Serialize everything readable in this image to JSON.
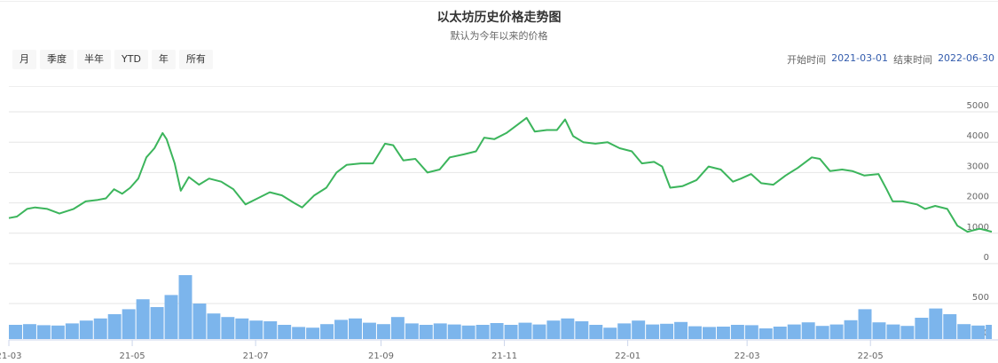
{
  "title": "以太坊历史价格走势图",
  "subtitle": "默认为今年以来的价格",
  "range_buttons": [
    "月",
    "季度",
    "半年",
    "YTD",
    "年",
    "所有"
  ],
  "date_range": {
    "start_label": "开始时间",
    "start": "2021-03-01",
    "end_label": "结束时间",
    "end": "2022-06-30"
  },
  "colors": {
    "price_line": "#3cb55c",
    "volume_bar": "#7cb5ec",
    "grid": "#e6e6e6",
    "date_value": "#335cad"
  },
  "chart_data": [
    {
      "type": "line",
      "name": "price",
      "xlim": [
        "2021-03-01",
        "2022-06-30"
      ],
      "ylim": [
        0,
        5000
      ],
      "yticks": [
        0,
        1000,
        2000,
        3000,
        4000,
        5000
      ],
      "xticks": [
        "21-03",
        "21-05",
        "21-07",
        "21-09",
        "21-11",
        "22-01",
        "22-03",
        "22-05"
      ],
      "grid": true,
      "points": [
        [
          "2021-03-01",
          1500
        ],
        [
          "2021-03-05",
          1550
        ],
        [
          "2021-03-10",
          1800
        ],
        [
          "2021-03-14",
          1850
        ],
        [
          "2021-03-20",
          1800
        ],
        [
          "2021-03-26",
          1650
        ],
        [
          "2021-04-02",
          1800
        ],
        [
          "2021-04-08",
          2050
        ],
        [
          "2021-04-14",
          2100
        ],
        [
          "2021-04-18",
          2150
        ],
        [
          "2021-04-22",
          2450
        ],
        [
          "2021-04-26",
          2300
        ],
        [
          "2021-04-30",
          2500
        ],
        [
          "2021-05-04",
          2800
        ],
        [
          "2021-05-08",
          3500
        ],
        [
          "2021-05-12",
          3800
        ],
        [
          "2021-05-16",
          4300
        ],
        [
          "2021-05-18",
          4100
        ],
        [
          "2021-05-22",
          3300
        ],
        [
          "2021-05-25",
          2400
        ],
        [
          "2021-05-29",
          2850
        ],
        [
          "2021-06-03",
          2600
        ],
        [
          "2021-06-08",
          2800
        ],
        [
          "2021-06-14",
          2700
        ],
        [
          "2021-06-20",
          2450
        ],
        [
          "2021-06-26",
          1950
        ],
        [
          "2021-07-02",
          2150
        ],
        [
          "2021-07-08",
          2350
        ],
        [
          "2021-07-14",
          2250
        ],
        [
          "2021-07-20",
          2000
        ],
        [
          "2021-07-24",
          1850
        ],
        [
          "2021-07-30",
          2250
        ],
        [
          "2021-08-05",
          2500
        ],
        [
          "2021-08-10",
          3000
        ],
        [
          "2021-08-15",
          3250
        ],
        [
          "2021-08-22",
          3300
        ],
        [
          "2021-08-28",
          3300
        ],
        [
          "2021-09-03",
          3950
        ],
        [
          "2021-09-07",
          3900
        ],
        [
          "2021-09-12",
          3400
        ],
        [
          "2021-09-18",
          3450
        ],
        [
          "2021-09-24",
          3000
        ],
        [
          "2021-09-30",
          3100
        ],
        [
          "2021-10-05",
          3500
        ],
        [
          "2021-10-12",
          3600
        ],
        [
          "2021-10-18",
          3700
        ],
        [
          "2021-10-22",
          4150
        ],
        [
          "2021-10-27",
          4100
        ],
        [
          "2021-11-02",
          4300
        ],
        [
          "2021-11-08",
          4600
        ],
        [
          "2021-11-12",
          4800
        ],
        [
          "2021-11-16",
          4350
        ],
        [
          "2021-11-22",
          4400
        ],
        [
          "2021-11-27",
          4400
        ],
        [
          "2021-12-01",
          4750
        ],
        [
          "2021-12-05",
          4200
        ],
        [
          "2021-12-10",
          4000
        ],
        [
          "2021-12-16",
          3950
        ],
        [
          "2021-12-22",
          4000
        ],
        [
          "2021-12-28",
          3800
        ],
        [
          "2022-01-03",
          3700
        ],
        [
          "2022-01-08",
          3300
        ],
        [
          "2022-01-14",
          3350
        ],
        [
          "2022-01-18",
          3200
        ],
        [
          "2022-01-22",
          2500
        ],
        [
          "2022-01-28",
          2550
        ],
        [
          "2022-02-04",
          2750
        ],
        [
          "2022-02-10",
          3200
        ],
        [
          "2022-02-16",
          3100
        ],
        [
          "2022-02-22",
          2700
        ],
        [
          "2022-02-26",
          2800
        ],
        [
          "2022-03-03",
          2950
        ],
        [
          "2022-03-08",
          2650
        ],
        [
          "2022-03-14",
          2600
        ],
        [
          "2022-03-20",
          2900
        ],
        [
          "2022-03-26",
          3150
        ],
        [
          "2022-04-02",
          3500
        ],
        [
          "2022-04-06",
          3450
        ],
        [
          "2022-04-11",
          3050
        ],
        [
          "2022-04-17",
          3100
        ],
        [
          "2022-04-22",
          3050
        ],
        [
          "2022-04-28",
          2900
        ],
        [
          "2022-05-05",
          2950
        ],
        [
          "2022-05-09",
          2450
        ],
        [
          "2022-05-12",
          2050
        ],
        [
          "2022-05-17",
          2050
        ],
        [
          "2022-05-24",
          1950
        ],
        [
          "2022-05-28",
          1800
        ],
        [
          "2022-06-02",
          1900
        ],
        [
          "2022-06-08",
          1800
        ],
        [
          "2022-06-13",
          1250
        ],
        [
          "2022-06-18",
          1050
        ],
        [
          "2022-06-24",
          1150
        ],
        [
          "2022-06-30",
          1050
        ]
      ]
    },
    {
      "type": "bar",
      "name": "volume",
      "ylim": [
        0,
        1000
      ],
      "yticks": [
        0,
        500
      ],
      "week_start": "2021-03-01",
      "weekly_values": [
        200,
        210,
        195,
        190,
        220,
        260,
        290,
        350,
        420,
        560,
        450,
        620,
        900,
        500,
        360,
        310,
        290,
        260,
        250,
        200,
        170,
        160,
        210,
        270,
        290,
        230,
        210,
        310,
        220,
        200,
        220,
        205,
        190,
        200,
        225,
        200,
        230,
        205,
        260,
        290,
        250,
        200,
        160,
        220,
        260,
        205,
        215,
        240,
        180,
        170,
        175,
        200,
        195,
        150,
        175,
        205,
        235,
        185,
        205,
        265,
        420,
        235,
        205,
        185,
        300,
        430,
        350,
        210,
        190,
        200
      ]
    }
  ]
}
